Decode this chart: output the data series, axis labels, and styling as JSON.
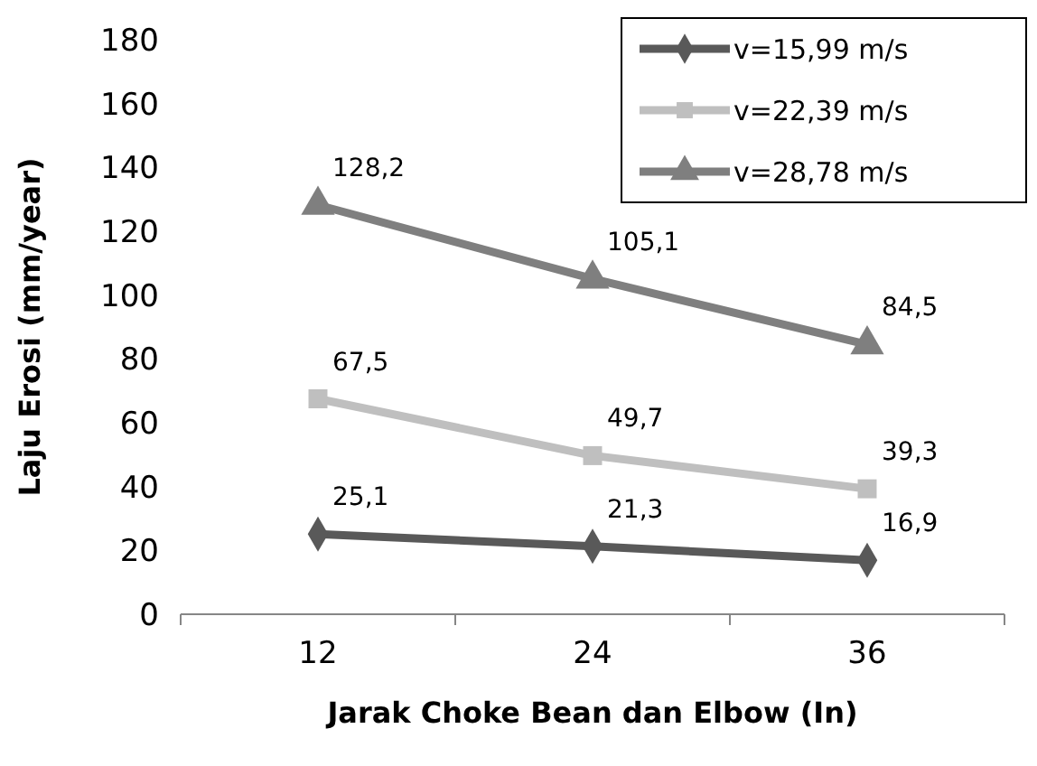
{
  "chart_data": {
    "type": "line",
    "xlabel": "Jarak Choke Bean dan Elbow (In)",
    "ylabel": "Laju Erosi (mm/year)",
    "categories": [
      "12",
      "24",
      "36"
    ],
    "ylim": [
      0,
      180
    ],
    "yticks": [
      0,
      20,
      40,
      60,
      80,
      100,
      120,
      140,
      160,
      180
    ],
    "grid": false,
    "legend": "top right",
    "line_style": "solid",
    "series": [
      {
        "name": "v=15,99 m/s",
        "color": "#595959",
        "marker": "diamond",
        "values": [
          25.1,
          21.3,
          16.9
        ],
        "value_labels": [
          "25,1",
          "21,3",
          "16,9"
        ]
      },
      {
        "name": "v=22,39 m/s",
        "color": "#bfbfbf",
        "marker": "square",
        "values": [
          67.5,
          49.7,
          39.3
        ],
        "value_labels": [
          "67,5",
          "49,7",
          "39,3"
        ]
      },
      {
        "name": "v=28,78 m/s",
        "color": "#7f7f7f",
        "marker": "triangle",
        "values": [
          128.2,
          105.1,
          84.5
        ],
        "value_labels": [
          "128,2",
          "105,1",
          "84,5"
        ]
      }
    ]
  }
}
